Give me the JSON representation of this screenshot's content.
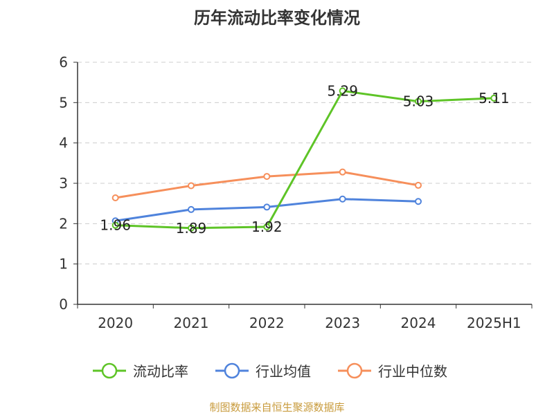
{
  "chart_data": {
    "type": "line",
    "title": "历年流动比率变化情况",
    "categories": [
      "2020",
      "2021",
      "2022",
      "2023",
      "2024",
      "2025H1"
    ],
    "ylim": [
      0,
      6
    ],
    "yticks": [
      "0",
      "1",
      "2",
      "3",
      "4",
      "5",
      "6"
    ],
    "grid": true,
    "legend_position": "bottom",
    "series": [
      {
        "name": "流动比率",
        "color": "#5ec427",
        "values": [
          1.96,
          1.89,
          1.92,
          5.29,
          5.03,
          5.11
        ],
        "labels": [
          "1.96",
          "1.89",
          "1.92",
          "5.29",
          "5.03",
          "5.11"
        ]
      },
      {
        "name": "行业均值",
        "color": "#4f83dc",
        "values": [
          2.07,
          2.35,
          2.41,
          2.61,
          2.55,
          null
        ]
      },
      {
        "name": "行业中位数",
        "color": "#f68f5b",
        "values": [
          2.64,
          2.94,
          3.17,
          3.28,
          2.95,
          null
        ]
      }
    ]
  },
  "source": "制图数据来自恒生聚源数据库"
}
